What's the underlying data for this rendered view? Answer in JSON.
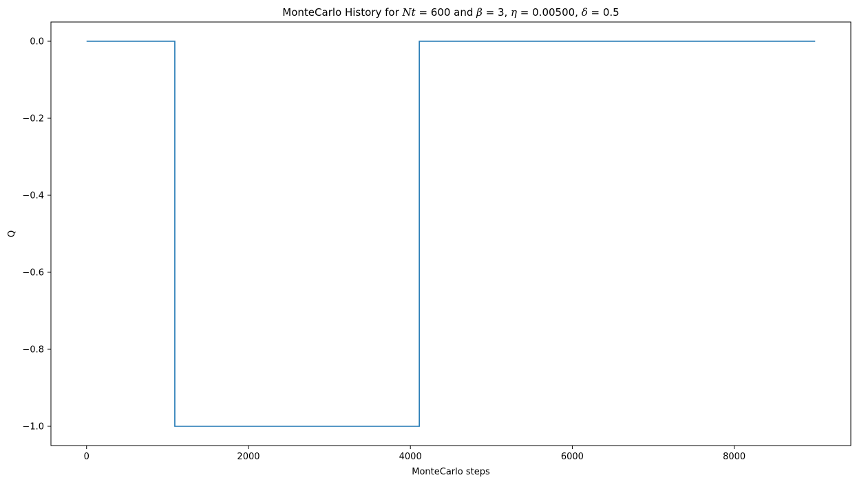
{
  "chart_data": {
    "type": "line",
    "title": {
      "parts": [
        {
          "text": "MonteCarlo History for ",
          "math": false
        },
        {
          "text": "Nt",
          "math": true
        },
        {
          "text": " = 600 and  ",
          "math": false
        },
        {
          "text": "β",
          "math": true
        },
        {
          "text": " = 3, ",
          "math": false
        },
        {
          "text": "η",
          "math": true
        },
        {
          "text": " = 0.00500, ",
          "math": false
        },
        {
          "text": "δ",
          "math": true
        },
        {
          "text": " = 0.5",
          "math": false
        }
      ]
    },
    "xlabel": "MonteCarlo steps",
    "ylabel": "Q",
    "xlim": [
      -440,
      9440
    ],
    "ylim": [
      -1.05,
      0.05
    ],
    "xticks": [
      0,
      2000,
      4000,
      6000,
      8000
    ],
    "xtick_labels": [
      "0",
      "2000",
      "4000",
      "6000",
      "8000"
    ],
    "yticks": [
      0.0,
      -0.2,
      -0.4,
      -0.6,
      -0.8,
      -1.0
    ],
    "ytick_labels": [
      "0.0",
      "−0.2",
      "−0.4",
      "−0.6",
      "−0.8",
      "−1.0"
    ],
    "grid": false,
    "series": [
      {
        "color": "#1f77b4",
        "x": [
          0,
          1090,
          1090,
          4110,
          4110,
          9000
        ],
        "y": [
          0,
          0,
          -1,
          -1,
          0,
          0
        ]
      }
    ]
  }
}
